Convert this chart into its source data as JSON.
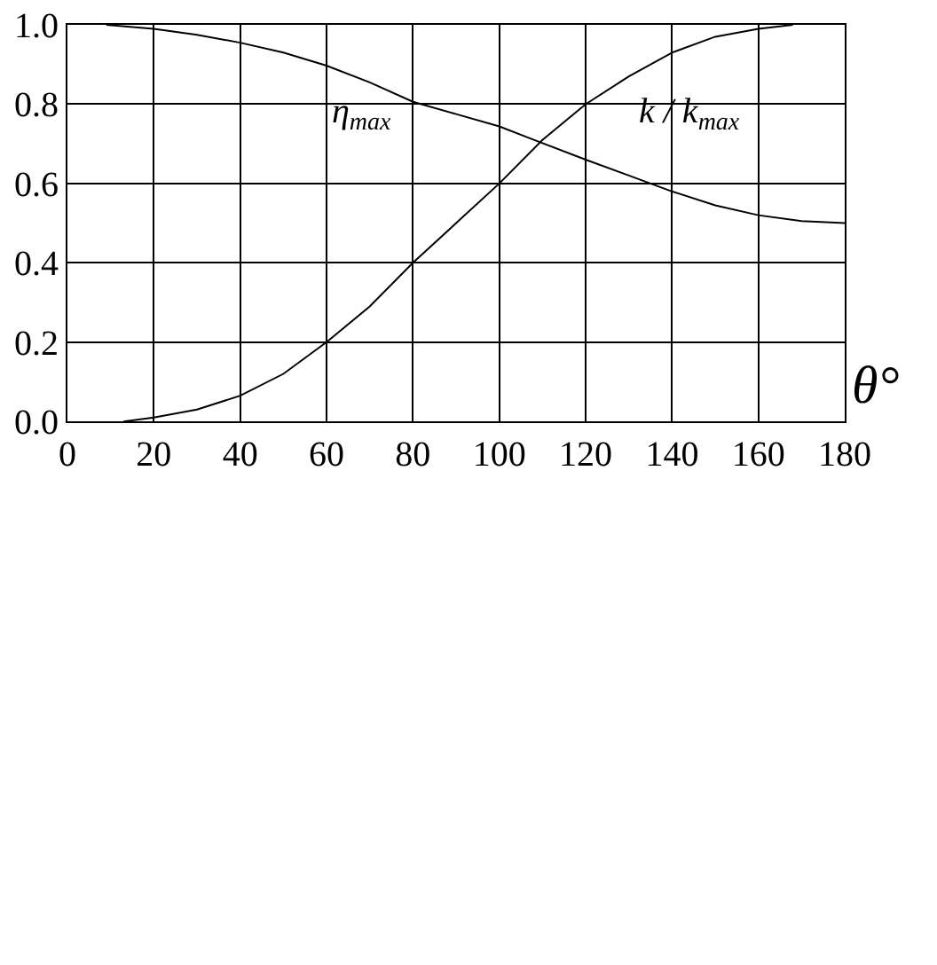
{
  "chart_data": {
    "type": "line",
    "xlabel": "θ°",
    "x": [
      9,
      20,
      30,
      40,
      50,
      60,
      70,
      80,
      90,
      100,
      108,
      120,
      130,
      140,
      150,
      160,
      170,
      180
    ],
    "series": [
      {
        "name": "η$_{max}$",
        "color": "#000000",
        "values": [
          1.0,
          0.99,
          0.975,
          0.955,
          0.93,
          0.897,
          0.855,
          0.806,
          0.775,
          0.744,
          0.71,
          0.66,
          0.62,
          0.58,
          0.545,
          0.52,
          0.505,
          0.5
        ]
      },
      {
        "name": "k / k$_{max}$",
        "color": "#000000",
        "x": [
          13,
          20,
          30,
          40,
          50,
          60,
          70,
          80,
          90,
          100,
          110,
          120,
          130,
          140,
          150,
          160,
          168
        ],
        "values": [
          0.0,
          0.01,
          0.03,
          0.065,
          0.12,
          0.2,
          0.29,
          0.4,
          0.5,
          0.6,
          0.71,
          0.8,
          0.87,
          0.93,
          0.97,
          0.99,
          1.0
        ]
      }
    ],
    "xlim": [
      0,
      180
    ],
    "xticks": [
      0,
      20,
      40,
      60,
      80,
      100,
      120,
      140,
      160,
      180
    ],
    "ylim": [
      0,
      1.0
    ],
    "yticks": [
      {
        "value": 0,
        "label": "0.0"
      },
      {
        "value": 0.2,
        "label": "0.2"
      },
      {
        "value": 0.4,
        "label": "0.4"
      },
      {
        "value": 0.6,
        "label": "0.6"
      },
      {
        "value": 0.8,
        "label": "0.8"
      },
      {
        "value": 1.0,
        "label": "1.0"
      }
    ],
    "grid": true,
    "legend": false,
    "marker": "none",
    "line_style": "solid"
  }
}
